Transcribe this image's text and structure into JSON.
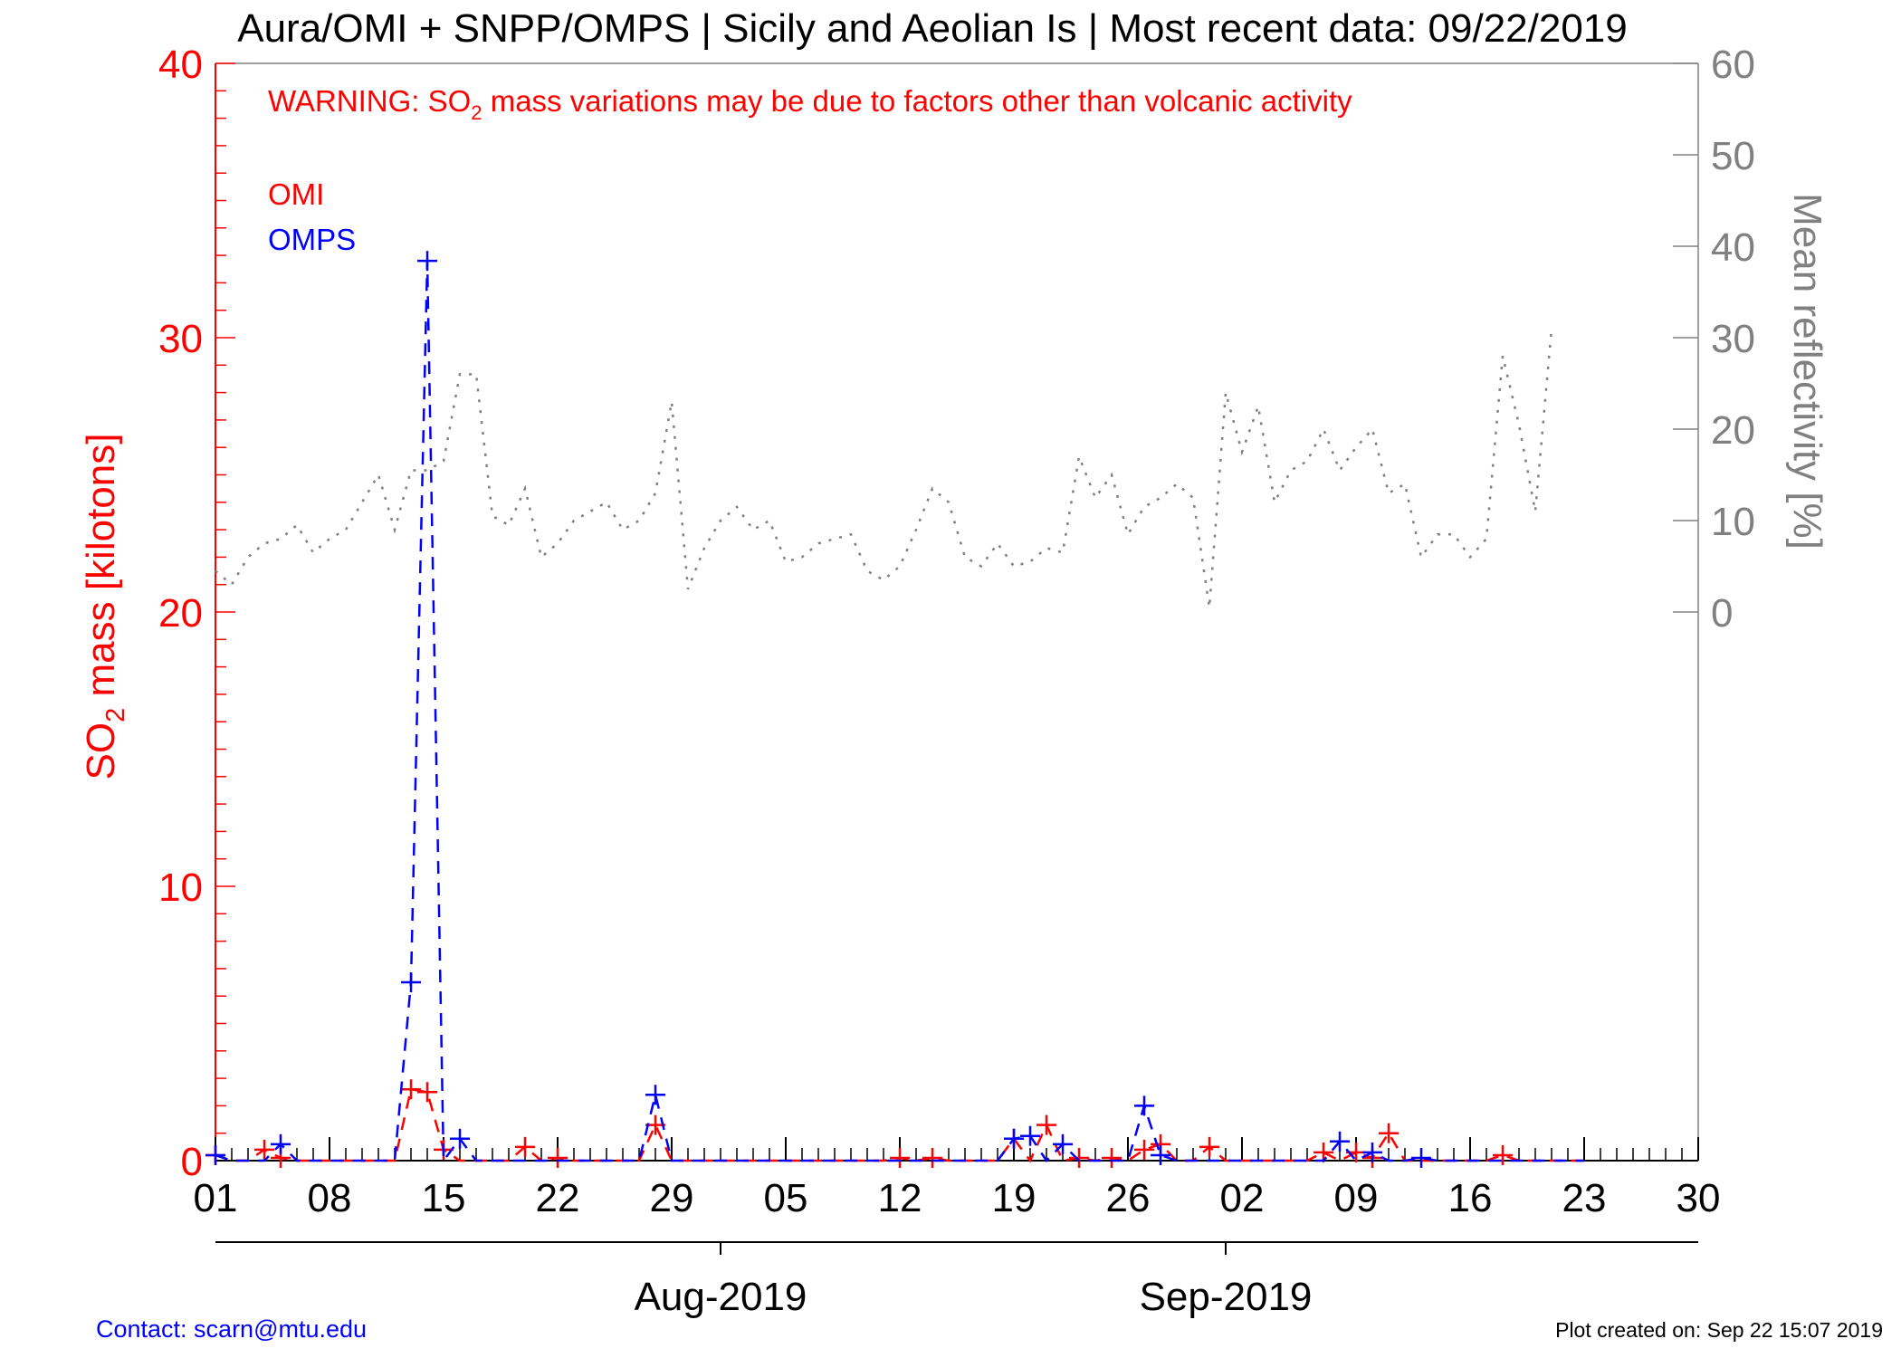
{
  "header": {
    "title": "Aura/OMI + SNPP/OMPS | Sicily and Aeolian Is | Most recent data: 09/22/2019"
  },
  "warning": {
    "prefix": "WARNING: SO",
    "sub": "2",
    "suffix": " mass variations may be due to factors other than volcanic activity"
  },
  "footer": {
    "contact": "Contact: scarn@mtu.edu",
    "created": "Plot created on: Sep 22 15:07 2019"
  },
  "colors": {
    "omi": "#ff0000",
    "omps": "#0000ff",
    "reflectivity": "#808080"
  },
  "chart_data": {
    "type": "line",
    "x_unit": "day of period starting 2019-07-01",
    "xlim": [
      0,
      91
    ],
    "x_ticks": [
      {
        "x": 0,
        "label": "01"
      },
      {
        "x": 7,
        "label": "08"
      },
      {
        "x": 14,
        "label": "15"
      },
      {
        "x": 21,
        "label": "22"
      },
      {
        "x": 28,
        "label": "29"
      },
      {
        "x": 35,
        "label": "05"
      },
      {
        "x": 42,
        "label": "12"
      },
      {
        "x": 49,
        "label": "19"
      },
      {
        "x": 56,
        "label": "26"
      },
      {
        "x": 63,
        "label": "02"
      },
      {
        "x": 70,
        "label": "09"
      },
      {
        "x": 77,
        "label": "16"
      },
      {
        "x": 84,
        "label": "23"
      },
      {
        "x": 91,
        "label": "30"
      }
    ],
    "month_labels": [
      {
        "x": 31,
        "label": "Aug-2019"
      },
      {
        "x": 62,
        "label": "Sep-2019"
      }
    ],
    "y_left": {
      "label_prefix": "SO",
      "label_sub": "2",
      "label_suffix": " mass [kilotons]",
      "lim": [
        0,
        40
      ],
      "ticks": [
        0,
        10,
        20,
        30,
        40
      ]
    },
    "y_right": {
      "label": "Mean reflectivity [%]",
      "lim": [
        -60,
        60
      ],
      "ticks": [
        0,
        10,
        20,
        30,
        40,
        50,
        60
      ]
    },
    "series": [
      {
        "name": "OMI",
        "axis": "left",
        "style": "dashed",
        "points": [
          [
            0,
            0.2
          ],
          [
            1,
            0
          ],
          [
            2,
            0
          ],
          [
            3,
            0.4
          ],
          [
            4,
            0.1
          ],
          [
            5,
            0
          ],
          [
            6,
            0
          ],
          [
            7,
            0
          ],
          [
            8,
            0
          ],
          [
            9,
            0
          ],
          [
            10,
            0
          ],
          [
            11,
            0
          ],
          [
            12,
            2.6
          ],
          [
            13,
            2.5
          ],
          [
            14,
            0.4
          ],
          [
            15,
            0
          ],
          [
            16,
            0
          ],
          [
            17,
            0
          ],
          [
            18,
            0
          ],
          [
            19,
            0.5
          ],
          [
            20,
            0
          ],
          [
            21,
            0.1
          ],
          [
            22,
            0
          ],
          [
            23,
            0
          ],
          [
            24,
            0
          ],
          [
            25,
            0
          ],
          [
            26,
            0
          ],
          [
            27,
            1.3
          ],
          [
            28,
            0
          ],
          [
            29,
            0
          ],
          [
            30,
            0
          ],
          [
            31,
            0
          ],
          [
            32,
            0
          ],
          [
            33,
            0
          ],
          [
            34,
            0
          ],
          [
            35,
            0
          ],
          [
            36,
            0
          ],
          [
            37,
            0
          ],
          [
            38,
            0
          ],
          [
            39,
            0
          ],
          [
            40,
            0
          ],
          [
            41,
            0
          ],
          [
            42,
            0.1
          ],
          [
            43,
            0
          ],
          [
            44,
            0.1
          ],
          [
            45,
            0
          ],
          [
            46,
            0
          ],
          [
            47,
            0
          ],
          [
            48,
            0
          ],
          [
            49,
            0.8
          ],
          [
            50,
            0
          ],
          [
            51,
            1.3
          ],
          [
            52,
            0
          ],
          [
            53,
            0.1
          ],
          [
            54,
            0
          ],
          [
            55,
            0.1
          ],
          [
            56,
            0
          ],
          [
            57,
            0.4
          ],
          [
            58,
            0.6
          ],
          [
            59,
            0
          ],
          [
            60,
            0
          ],
          [
            61,
            0.5
          ],
          [
            62,
            0
          ],
          [
            63,
            0
          ],
          [
            64,
            0
          ],
          [
            65,
            0
          ],
          [
            66,
            0
          ],
          [
            67,
            0
          ],
          [
            68,
            0.3
          ],
          [
            69,
            0
          ],
          [
            70,
            0.3
          ],
          [
            71,
            0.1
          ],
          [
            72,
            1.0
          ],
          [
            73,
            0
          ],
          [
            74,
            0
          ],
          [
            75,
            0
          ],
          [
            76,
            0
          ],
          [
            77,
            0
          ],
          [
            78,
            0
          ],
          [
            79,
            0.2
          ],
          [
            80,
            0
          ],
          [
            81,
            0
          ],
          [
            82,
            0
          ],
          [
            83,
            0
          ],
          [
            84,
            0
          ]
        ]
      },
      {
        "name": "OMPS",
        "axis": "left",
        "style": "dashed",
        "points": [
          [
            0,
            0.2
          ],
          [
            1,
            0
          ],
          [
            2,
            0
          ],
          [
            3,
            0
          ],
          [
            4,
            0.6
          ],
          [
            5,
            0
          ],
          [
            6,
            0
          ],
          [
            7,
            0
          ],
          [
            8,
            0
          ],
          [
            9,
            0
          ],
          [
            10,
            0
          ],
          [
            11,
            0
          ],
          [
            12,
            6.5
          ],
          [
            13,
            32.8
          ],
          [
            14,
            0
          ],
          [
            15,
            0.8
          ],
          [
            16,
            0
          ],
          [
            17,
            0
          ],
          [
            18,
            0
          ],
          [
            19,
            0
          ],
          [
            20,
            0
          ],
          [
            21,
            0
          ],
          [
            22,
            0
          ],
          [
            23,
            0
          ],
          [
            24,
            0
          ],
          [
            25,
            0
          ],
          [
            26,
            0
          ],
          [
            27,
            2.4
          ],
          [
            28,
            0
          ],
          [
            29,
            0
          ],
          [
            30,
            0
          ],
          [
            31,
            0
          ],
          [
            32,
            0
          ],
          [
            33,
            0
          ],
          [
            34,
            0
          ],
          [
            35,
            0
          ],
          [
            36,
            0
          ],
          [
            37,
            0
          ],
          [
            38,
            0
          ],
          [
            39,
            0
          ],
          [
            40,
            0
          ],
          [
            41,
            0
          ],
          [
            42,
            0
          ],
          [
            43,
            0
          ],
          [
            44,
            0
          ],
          [
            45,
            0
          ],
          [
            46,
            0
          ],
          [
            47,
            0
          ],
          [
            48,
            0
          ],
          [
            49,
            0.8
          ],
          [
            50,
            0.9
          ],
          [
            51,
            0
          ],
          [
            52,
            0.6
          ],
          [
            53,
            0
          ],
          [
            54,
            0
          ],
          [
            55,
            0
          ],
          [
            56,
            0
          ],
          [
            57,
            2.0
          ],
          [
            58,
            0.2
          ],
          [
            59,
            0
          ],
          [
            60,
            0
          ],
          [
            61,
            0
          ],
          [
            62,
            0
          ],
          [
            63,
            0
          ],
          [
            64,
            0
          ],
          [
            65,
            0
          ],
          [
            66,
            0
          ],
          [
            67,
            0
          ],
          [
            68,
            0
          ],
          [
            69,
            0.7
          ],
          [
            70,
            0
          ],
          [
            71,
            0.3
          ],
          [
            72,
            0
          ],
          [
            73,
            0
          ],
          [
            74,
            0.1
          ],
          [
            75,
            0
          ],
          [
            76,
            0
          ],
          [
            77,
            0
          ],
          [
            78,
            0
          ],
          [
            79,
            0
          ],
          [
            80,
            0
          ],
          [
            81,
            0
          ],
          [
            82,
            0
          ],
          [
            83,
            0
          ],
          [
            84,
            0
          ]
        ]
      },
      {
        "name": "Mean reflectivity",
        "axis": "right",
        "style": "dotted",
        "points": [
          [
            0,
            4.5
          ],
          [
            1,
            3
          ],
          [
            2,
            6
          ],
          [
            3,
            7.5
          ],
          [
            4,
            8
          ],
          [
            5,
            9.5
          ],
          [
            6,
            6.5
          ],
          [
            7,
            8
          ],
          [
            8,
            9
          ],
          [
            9,
            12
          ],
          [
            10,
            15
          ],
          [
            11,
            9
          ],
          [
            12,
            15.5
          ],
          [
            13,
            15.5
          ],
          [
            14,
            16.5
          ],
          [
            15,
            26
          ],
          [
            16,
            26
          ],
          [
            17,
            10.5
          ],
          [
            18,
            9.5
          ],
          [
            19,
            13.5
          ],
          [
            20,
            6
          ],
          [
            21,
            7.5
          ],
          [
            22,
            10
          ],
          [
            23,
            11
          ],
          [
            24,
            12
          ],
          [
            25,
            9
          ],
          [
            26,
            10
          ],
          [
            27,
            13
          ],
          [
            28,
            23
          ],
          [
            29,
            2.5
          ],
          [
            30,
            7
          ],
          [
            31,
            10
          ],
          [
            32,
            11.5
          ],
          [
            33,
            9
          ],
          [
            34,
            10
          ],
          [
            35,
            5.5
          ],
          [
            36,
            6
          ],
          [
            37,
            7.5
          ],
          [
            38,
            8
          ],
          [
            39,
            8.5
          ],
          [
            40,
            4.5
          ],
          [
            41,
            3.5
          ],
          [
            42,
            5
          ],
          [
            43,
            9
          ],
          [
            44,
            13.5
          ],
          [
            45,
            12
          ],
          [
            46,
            6
          ],
          [
            47,
            5
          ],
          [
            48,
            7.5
          ],
          [
            49,
            5
          ],
          [
            50,
            5.5
          ],
          [
            51,
            7
          ],
          [
            52,
            6.5
          ],
          [
            53,
            17
          ],
          [
            54,
            12.5
          ],
          [
            55,
            15
          ],
          [
            56,
            8.5
          ],
          [
            57,
            11.5
          ],
          [
            58,
            12.5
          ],
          [
            59,
            14
          ],
          [
            60,
            12.5
          ],
          [
            61,
            0.5
          ],
          [
            62,
            24
          ],
          [
            63,
            17.5
          ],
          [
            64,
            22.5
          ],
          [
            65,
            12
          ],
          [
            66,
            15.5
          ],
          [
            67,
            16.5
          ],
          [
            68,
            20
          ],
          [
            69,
            15.5
          ],
          [
            70,
            18
          ],
          [
            71,
            20
          ],
          [
            72,
            13
          ],
          [
            73,
            14
          ],
          [
            74,
            6
          ],
          [
            75,
            8.5
          ],
          [
            76,
            8.5
          ],
          [
            77,
            6
          ],
          [
            78,
            8
          ],
          [
            79,
            28
          ],
          [
            80,
            20.5
          ],
          [
            81,
            11
          ],
          [
            82,
            31
          ]
        ]
      }
    ]
  }
}
